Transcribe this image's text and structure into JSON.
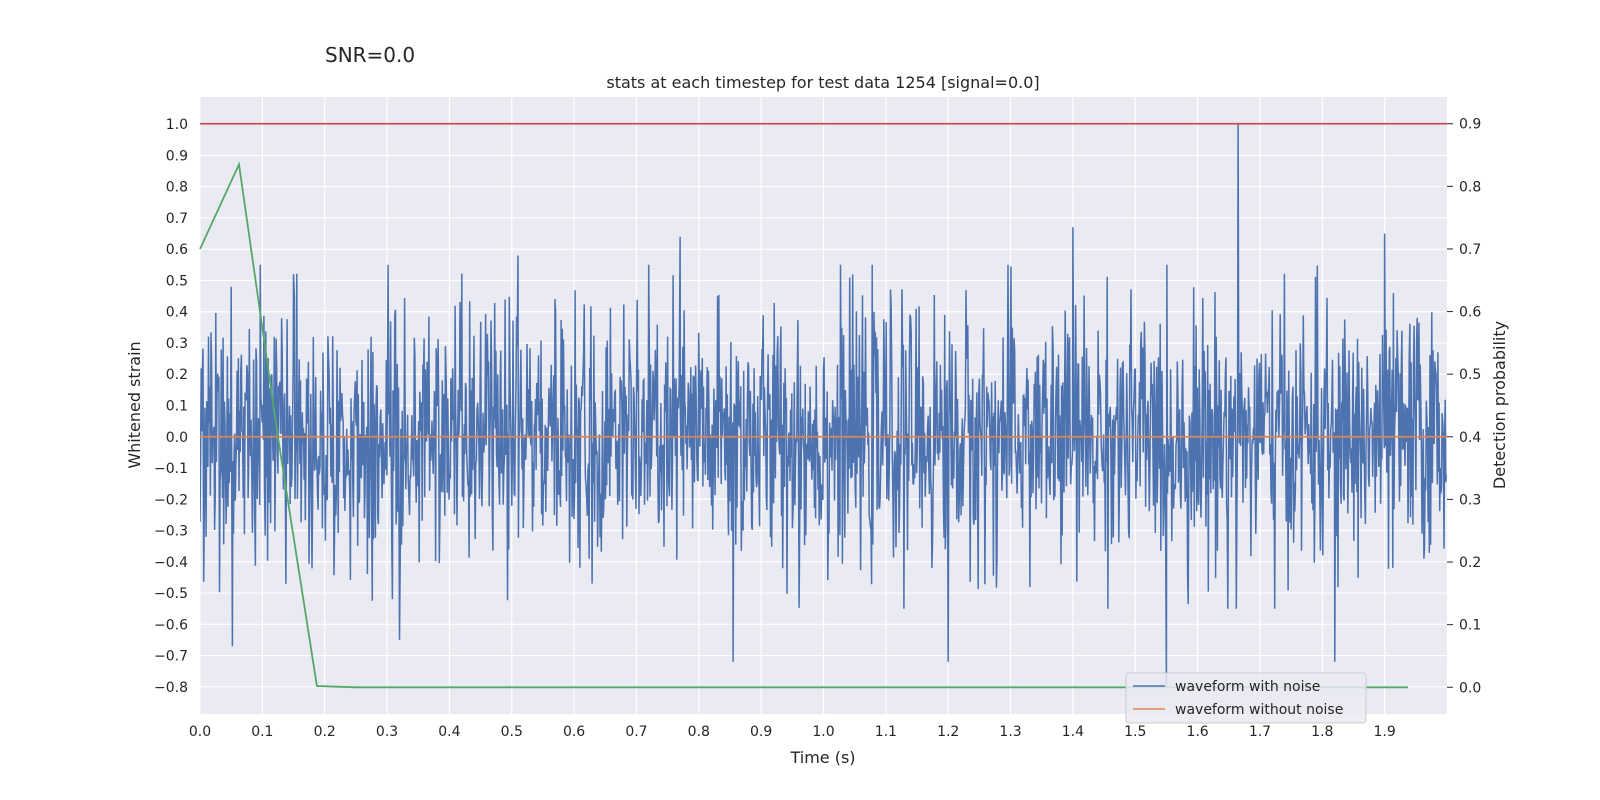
{
  "chart_data": {
    "type": "line",
    "suptitle": "SNR=0.0",
    "title": "stats at each timestep for test data 1254 [signal=0.0]",
    "xlabel": "Time (s)",
    "ylabel": "Whitened strain",
    "y2label": "Detection probability",
    "xlim": [
      0.0,
      2.0
    ],
    "ylim": [
      -0.887,
      1.087
    ],
    "y2lim": [
      -0.0427,
      0.9427
    ],
    "xticks": [
      "0.0",
      "0.1",
      "0.2",
      "0.3",
      "0.4",
      "0.5",
      "0.6",
      "0.7",
      "0.8",
      "0.9",
      "1.0",
      "1.1",
      "1.2",
      "1.3",
      "1.4",
      "1.5",
      "1.6",
      "1.7",
      "1.8",
      "1.9"
    ],
    "yticks": [
      "1.0",
      "0.9",
      "0.8",
      "0.7",
      "0.6",
      "0.5",
      "0.4",
      "0.3",
      "0.2",
      "0.1",
      "0.0",
      "−0.1",
      "−0.2",
      "−0.3",
      "−0.4",
      "−0.5",
      "−0.6",
      "−0.7",
      "−0.8"
    ],
    "y2ticks": [
      "0.9",
      "0.8",
      "0.7",
      "0.6",
      "0.5",
      "0.4",
      "0.3",
      "0.2",
      "0.1",
      "0.0"
    ],
    "grid": true,
    "legend_position": "bottom-right",
    "colors": {
      "noise": "#4c72b0",
      "clean": "#dd8452",
      "probability": "#55a868",
      "threshold": "#c44e52",
      "plot_bg": "#eaeaf2",
      "grid": "#ffffff"
    },
    "series": [
      {
        "name": "waveform with noise",
        "axis": "left",
        "note": "dense noise series; peaks listed as [x, y]",
        "extrema": [
          [
            0.05,
            0.48
          ],
          [
            0.052,
            -0.67
          ],
          [
            0.15,
            0.52
          ],
          [
            0.32,
            -0.65
          ],
          [
            0.51,
            0.58
          ],
          [
            0.77,
            0.64
          ],
          [
            0.855,
            -0.72
          ],
          [
            1.2,
            -0.72
          ],
          [
            1.4,
            0.67
          ],
          [
            1.55,
            -0.8
          ],
          [
            1.665,
            1.0
          ],
          [
            1.82,
            -0.72
          ],
          [
            1.9,
            0.65
          ]
        ]
      },
      {
        "name": "waveform without noise",
        "axis": "left",
        "x": [
          0.0,
          2.0
        ],
        "y": [
          0.0,
          0.0
        ]
      },
      {
        "name": "",
        "axis": "right",
        "x": [
          0.0,
          0.0625,
          0.125,
          0.1875,
          0.25,
          0.5,
          1.0,
          1.5,
          1.9375
        ],
        "y": [
          0.7,
          0.835,
          0.4,
          0.002,
          0.0,
          0.0,
          0.0,
          0.0,
          0.0
        ]
      },
      {
        "name": "",
        "axis": "right",
        "x": [
          0.0,
          2.0
        ],
        "y": [
          0.9,
          0.9
        ]
      }
    ]
  }
}
